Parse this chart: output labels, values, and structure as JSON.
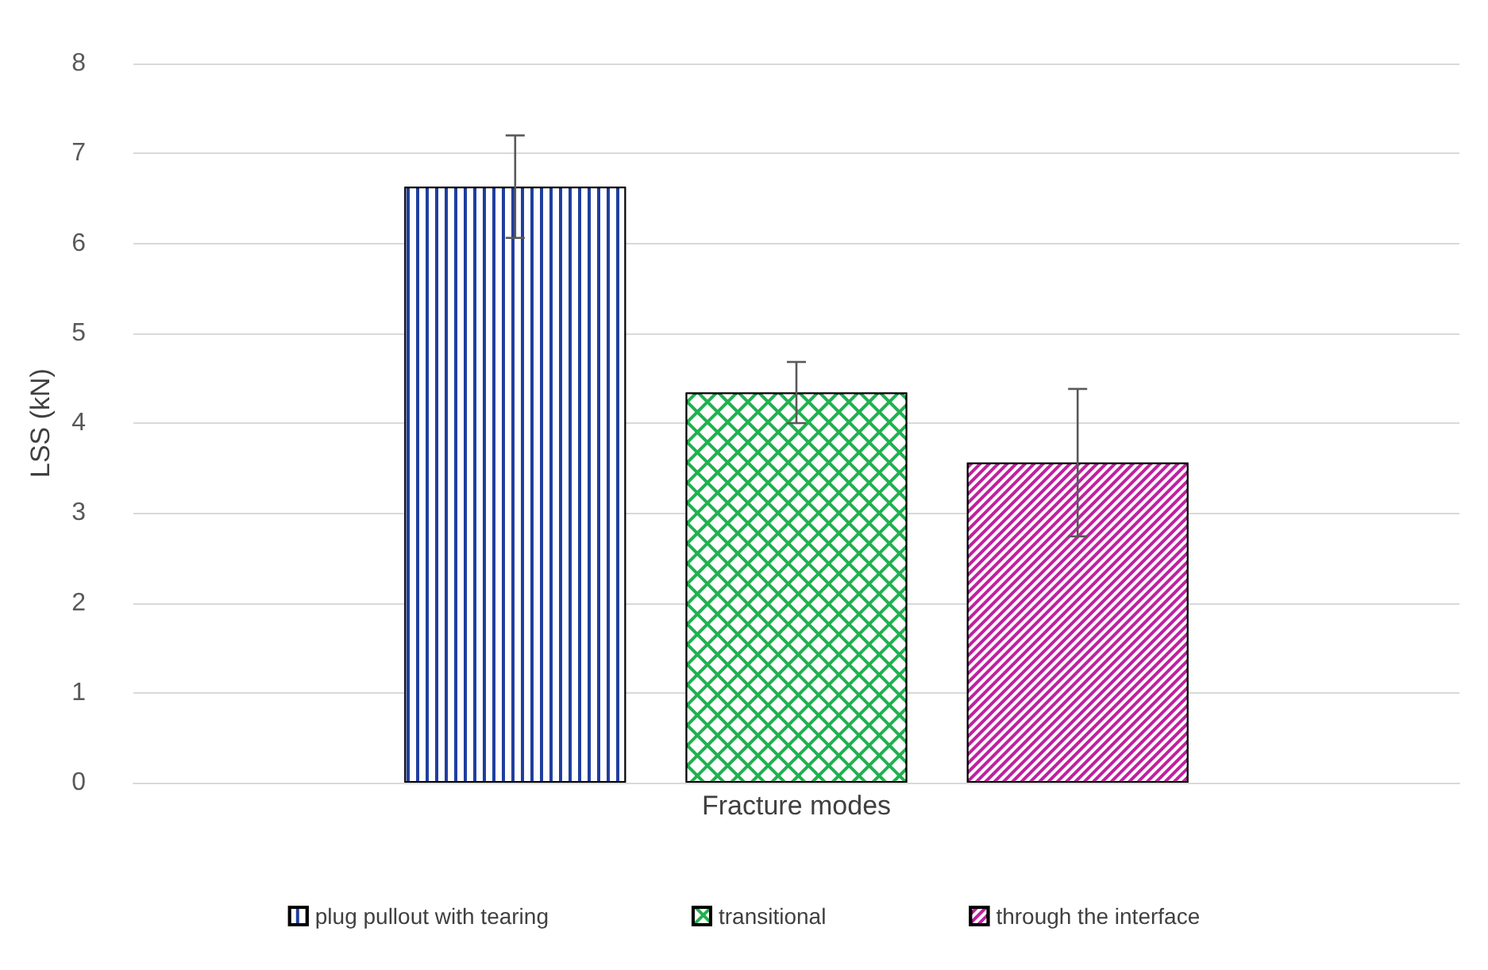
{
  "chart_data": {
    "type": "bar",
    "ylabel": "LSS (kN)",
    "categories": [
      "Fracture modes"
    ],
    "series": [
      {
        "name": "plug pullout with tearing",
        "color": "#1f3f9f",
        "values": [
          6.63
        ],
        "errors": [
          0.57
        ]
      },
      {
        "name": "transitional",
        "color": "#20b050",
        "values": [
          4.34
        ],
        "errors": [
          0.34
        ]
      },
      {
        "name": "through the interface",
        "color": "#c020a0",
        "values": [
          3.56
        ],
        "errors": [
          0.82
        ]
      }
    ],
    "ylim": [
      0,
      8
    ],
    "yticks": [
      0,
      1,
      2,
      3,
      4,
      5,
      6,
      7,
      8
    ],
    "grid": "y",
    "legend": "bottom"
  }
}
